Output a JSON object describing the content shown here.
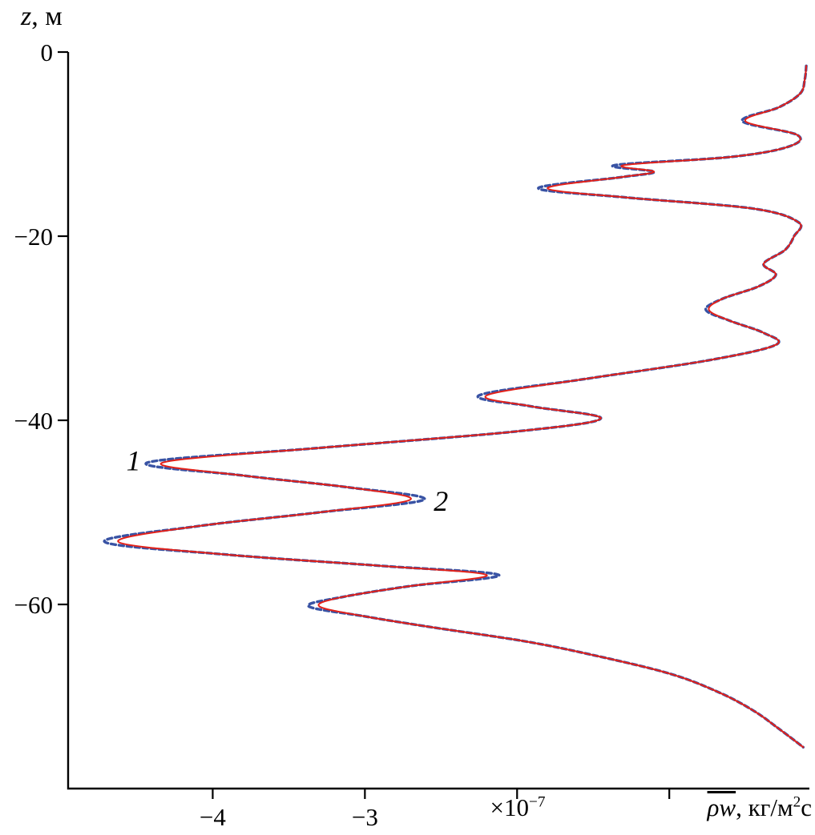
{
  "figure": {
    "background": "#ffffff"
  },
  "colors": {
    "axis": "#000000",
    "curve1": "#e32119",
    "curve2": "#3953a4"
  },
  "axis_titles": {
    "y_var": "z",
    "y_rest": ", м"
  },
  "x_scale": {
    "base": "×10",
    "exp": "−7"
  },
  "x_title": {
    "overlined": "ρw",
    "mid": ", кг/м",
    "sup": "2",
    "end": "с"
  },
  "chart_data": {
    "type": "line",
    "title": "",
    "xlabel": "ρw̄, кг/м²с, scale ×10⁻⁷",
    "ylabel": "z, м",
    "xlim": [
      -4.95,
      -0.09
    ],
    "ylim": [
      -80,
      0
    ],
    "grid": false,
    "legend_position": "none",
    "x_ticks": [
      {
        "value": -4,
        "label": "−4"
      },
      {
        "value": -3,
        "label": "−3"
      },
      {
        "value": -2,
        "label": ""
      },
      {
        "value": -1,
        "label": ""
      }
    ],
    "y_ticks": [
      {
        "value": 0,
        "label": "0"
      },
      {
        "value": -20,
        "label": "−20"
      },
      {
        "value": -40,
        "label": "−40"
      },
      {
        "value": -60,
        "label": "−60"
      }
    ],
    "z": [
      -1.5,
      -3,
      -4.5,
      -6,
      -7.5,
      -9,
      -10.3,
      -11.4,
      -12.3,
      -13,
      -13.6,
      -14.8,
      -15.8,
      -17,
      -18.5,
      -20,
      -21.5,
      -23,
      -24.2,
      -25.5,
      -26.8,
      -28,
      -29.2,
      -30.5,
      -31.8,
      -33.5,
      -35.5,
      -37.3,
      -38.5,
      -39.8,
      -41.2,
      -43,
      -44.6,
      -46,
      -47.3,
      -48.6,
      -50,
      -51.5,
      -53.2,
      -54.6,
      -55.8,
      -56.8,
      -58,
      -59.2,
      -60.2,
      -61.3,
      -62.5,
      -64,
      -65.5,
      -67.5,
      -69.5,
      -71.5,
      -73.5,
      -75.5
    ],
    "series": [
      {
        "name": "1",
        "style": "solid",
        "color": "#e32119",
        "width": 2,
        "dash": "",
        "values": [
          -0.1,
          -0.11,
          -0.14,
          -0.28,
          -0.5,
          -0.16,
          -0.22,
          -0.6,
          -1.3,
          -1.1,
          -1.32,
          -1.8,
          -1.28,
          -0.45,
          -0.15,
          -0.18,
          -0.24,
          -0.38,
          -0.3,
          -0.42,
          -0.65,
          -0.74,
          -0.6,
          -0.38,
          -0.3,
          -0.75,
          -1.55,
          -2.2,
          -1.9,
          -1.45,
          -2.0,
          -3.3,
          -4.33,
          -3.8,
          -3.1,
          -2.7,
          -3.3,
          -4.1,
          -4.62,
          -3.9,
          -2.9,
          -2.2,
          -2.7,
          -3.15,
          -3.3,
          -3.0,
          -2.55,
          -1.95,
          -1.5,
          -1.0,
          -0.68,
          -0.45,
          -0.28,
          -0.12
        ]
      },
      {
        "name": "2",
        "style": "dashed",
        "color": "#3953a4",
        "width": 3.4,
        "dash": "6 4",
        "values": [
          -0.1,
          -0.11,
          -0.14,
          -0.28,
          -0.52,
          -0.16,
          -0.22,
          -0.6,
          -1.36,
          -1.1,
          -1.32,
          -1.86,
          -1.28,
          -0.45,
          -0.15,
          -0.18,
          -0.24,
          -0.38,
          -0.3,
          -0.42,
          -0.65,
          -0.76,
          -0.6,
          -0.38,
          -0.3,
          -0.75,
          -1.55,
          -2.25,
          -1.9,
          -1.45,
          -2.0,
          -3.3,
          -4.43,
          -3.8,
          -3.1,
          -2.61,
          -3.3,
          -4.1,
          -4.71,
          -3.9,
          -2.9,
          -2.12,
          -2.7,
          -3.15,
          -3.37,
          -3.0,
          -2.55,
          -1.95,
          -1.5,
          -1.0,
          -0.68,
          -0.45,
          -0.28,
          -0.12
        ]
      }
    ],
    "annotations": [
      {
        "label": "1",
        "x": -4.52,
        "z": -44.4
      },
      {
        "label": "2",
        "x": -2.5,
        "z": -48.8
      }
    ]
  }
}
